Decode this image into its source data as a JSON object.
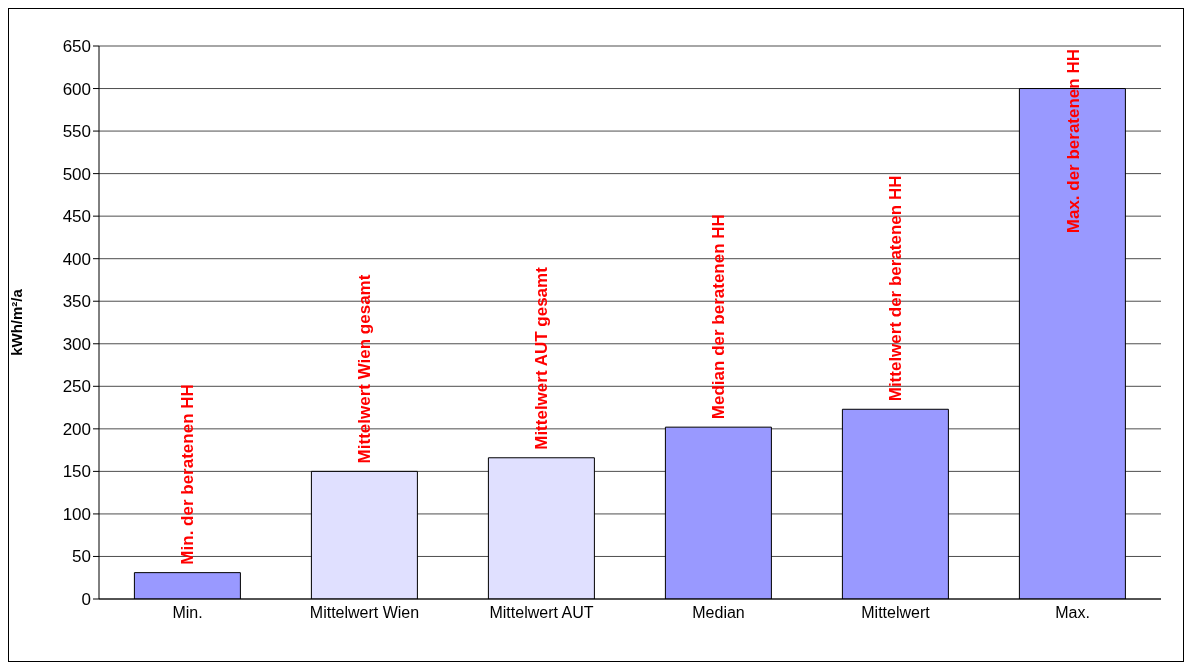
{
  "chart_data": {
    "type": "bar",
    "ylabel": "kWh/m²/a",
    "categories": [
      "Min.",
      "Mittelwert Wien",
      "Mittelwert AUT",
      "Median",
      "Mittelwert",
      "Max."
    ],
    "values": [
      31,
      150,
      166,
      202,
      223,
      600
    ],
    "colors": [
      "#9999ff",
      "#e0e0ff",
      "#e0e0ff",
      "#9999ff",
      "#9999ff",
      "#9999ff"
    ],
    "ylim": [
      0,
      650
    ],
    "yticks": [
      0,
      50,
      100,
      150,
      200,
      250,
      300,
      350,
      400,
      450,
      500,
      550,
      600,
      650
    ],
    "grid": "y",
    "annotations": [
      {
        "text": "Min. der beratenen HH",
        "x": "Min.",
        "y": 31
      },
      {
        "text": "Mittelwert Wien gesamt",
        "x": "Mittelwert Wien",
        "y": 150
      },
      {
        "text": "Mittelwert AUT gesamt",
        "x": "Mittelwert AUT",
        "y": 166
      },
      {
        "text": "Median der beratenen HH",
        "x": "Median",
        "y": 202
      },
      {
        "text": "Mittelwert der beratenen HH",
        "x": "Mittelwert",
        "y": 223
      },
      {
        "text": "Max. der beratenen HH",
        "x": "Max.",
        "y": 600
      }
    ]
  }
}
